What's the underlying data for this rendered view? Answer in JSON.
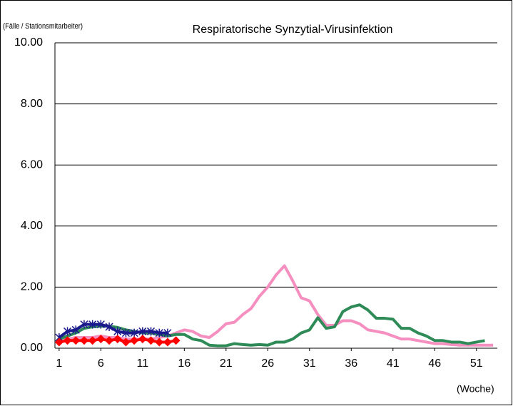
{
  "chart_data": {
    "type": "line",
    "title": "Respiratorische  Synzytial-Virusinfektion",
    "y_label": "(Fälle / Stationsmitarbeiter)",
    "x_label": "(Woche)",
    "x": [
      1,
      2,
      3,
      4,
      5,
      6,
      7,
      8,
      9,
      10,
      11,
      12,
      13,
      14,
      15,
      16,
      17,
      18,
      19,
      20,
      21,
      22,
      23,
      24,
      25,
      26,
      27,
      28,
      29,
      30,
      31,
      32,
      33,
      34,
      35,
      36,
      37,
      38,
      39,
      40,
      41,
      42,
      43,
      44,
      45,
      46,
      47,
      48,
      49,
      50,
      51,
      52,
      53
    ],
    "xlim": [
      0.5,
      53.5
    ],
    "xticks": [
      1,
      6,
      11,
      16,
      21,
      26,
      31,
      36,
      41,
      46,
      51
    ],
    "ylim": [
      0,
      10
    ],
    "yticks": [
      {
        "value": 0,
        "label": "0.00"
      },
      {
        "value": 2,
        "label": "2.00"
      },
      {
        "value": 4,
        "label": "4.00"
      },
      {
        "value": 6,
        "label": "6.00"
      },
      {
        "value": 8,
        "label": "8.00"
      },
      {
        "value": 10,
        "label": "10.00"
      }
    ],
    "grid": true,
    "series": [
      {
        "color": "#f48fc0",
        "marker": "none",
        "values": [
          0.3,
          0.3,
          0.35,
          0.35,
          0.35,
          0.4,
          0.35,
          0.35,
          0.3,
          0.3,
          0.3,
          0.3,
          0.35,
          0.4,
          0.5,
          0.6,
          0.55,
          0.4,
          0.35,
          0.55,
          0.8,
          0.85,
          1.1,
          1.3,
          1.7,
          2.0,
          2.4,
          2.7,
          2.2,
          1.65,
          1.55,
          1.1,
          0.75,
          0.75,
          0.9,
          0.9,
          0.8,
          0.6,
          0.55,
          0.5,
          0.4,
          0.3,
          0.3,
          0.25,
          0.2,
          0.15,
          0.15,
          0.12,
          0.1,
          0.1,
          0.1,
          0.1,
          0.1
        ]
      },
      {
        "color": "#2e8b57",
        "marker": "none",
        "values": [
          0.3,
          0.4,
          0.5,
          0.65,
          0.7,
          0.72,
          0.72,
          0.68,
          0.6,
          0.55,
          0.5,
          0.5,
          0.45,
          0.4,
          0.45,
          0.45,
          0.3,
          0.25,
          0.1,
          0.08,
          0.08,
          0.15,
          0.12,
          0.1,
          0.12,
          0.1,
          0.2,
          0.2,
          0.3,
          0.5,
          0.6,
          1.0,
          0.65,
          0.7,
          1.2,
          1.35,
          1.42,
          1.25,
          0.98,
          0.98,
          0.95,
          0.65,
          0.65,
          0.5,
          0.4,
          0.25,
          0.25,
          0.2,
          0.2,
          0.15,
          0.2,
          0.25,
          null
        ]
      },
      {
        "color": "#1a1a8c",
        "marker": "star",
        "values": [
          0.35,
          0.55,
          0.6,
          0.78,
          0.78,
          0.78,
          0.7,
          0.55,
          0.5,
          0.5,
          0.55,
          0.55,
          0.5,
          0.5,
          null,
          null,
          null,
          null,
          null,
          null,
          null,
          null,
          null,
          null,
          null,
          null,
          null,
          null,
          null,
          null,
          null,
          null,
          null,
          null,
          null,
          null,
          null,
          null,
          null,
          null,
          null,
          null,
          null,
          null,
          null,
          null,
          null,
          null,
          null,
          null,
          null,
          null,
          null
        ]
      },
      {
        "color": "#ff0000",
        "marker": "diamond",
        "values": [
          0.2,
          0.25,
          0.25,
          0.25,
          0.25,
          0.3,
          0.25,
          0.3,
          0.2,
          0.25,
          0.3,
          0.25,
          0.2,
          0.2,
          0.25,
          null,
          null,
          null,
          null,
          null,
          null,
          null,
          null,
          null,
          null,
          null,
          null,
          null,
          null,
          null,
          null,
          null,
          null,
          null,
          null,
          null,
          null,
          null,
          null,
          null,
          null,
          null,
          null,
          null,
          null,
          null,
          null,
          null,
          null,
          null,
          null,
          null,
          null
        ]
      }
    ]
  }
}
